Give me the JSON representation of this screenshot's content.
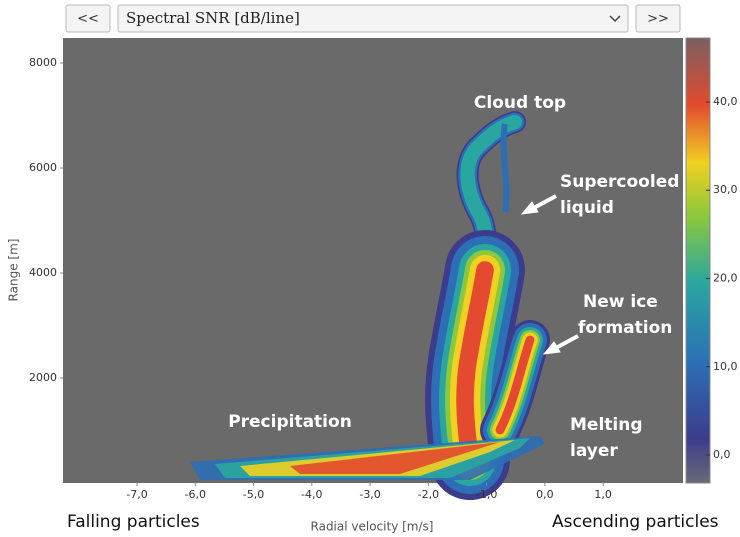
{
  "toolbar": {
    "prev": "<<",
    "selector": "Spectral SNR [dB/line]",
    "next": ">>"
  },
  "chart_data": {
    "type": "heatmap",
    "xlabel": "Radial velocity [m/s]",
    "ylabel": "Range [m]",
    "xlim": [
      -8.27,
      2.37
    ],
    "ylim": [
      0,
      8476
    ],
    "xticks": [
      {
        "value": -7,
        "label": "-7,0"
      },
      {
        "value": -6,
        "label": "-6,0"
      },
      {
        "value": -5,
        "label": "-5,0"
      },
      {
        "value": -4,
        "label": "-4,0"
      },
      {
        "value": -3,
        "label": "-3,0"
      },
      {
        "value": -2,
        "label": "-2,0"
      },
      {
        "value": -1,
        "label": "-1,0"
      },
      {
        "value": 0,
        "label": "0,0"
      },
      {
        "value": 1,
        "label": "1,0"
      }
    ],
    "yticks": [
      2000,
      4000,
      6000,
      8000
    ],
    "clim": [
      -3.17,
      47.25
    ],
    "cticks": [
      {
        "value": 0,
        "label": "0,0"
      },
      {
        "value": 10,
        "label": "10,0"
      },
      {
        "value": 20,
        "label": "20,0"
      },
      {
        "value": 30,
        "label": "30,0"
      },
      {
        "value": 40,
        "label": "40,0"
      }
    ],
    "annotations": [
      {
        "lines": [
          "Cloud top"
        ]
      },
      {
        "lines": [
          "Supercooled",
          "liquid"
        ]
      },
      {
        "lines": [
          "New ice",
          "formation"
        ]
      },
      {
        "lines": [
          "Precipitation"
        ]
      },
      {
        "lines": [
          "Melting",
          "layer"
        ]
      }
    ],
    "left_note": "Falling particles",
    "right_note": "Ascending particles"
  }
}
